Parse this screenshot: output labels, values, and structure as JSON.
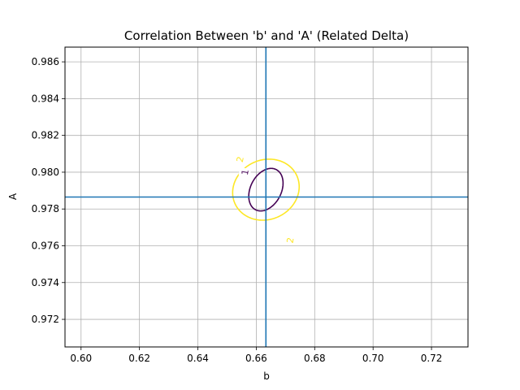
{
  "chart_data": {
    "type": "contour",
    "title": "Correlation Between 'b' and 'A' (Related Delta)",
    "xlabel": "b",
    "ylabel": "A",
    "xlim": [
      0.5945,
      0.7325
    ],
    "ylim": [
      0.9705,
      0.9868
    ],
    "xticks": [
      "0.60",
      "0.62",
      "0.64",
      "0.66",
      "0.68",
      "0.70",
      "0.72"
    ],
    "yticks": [
      "0.972",
      "0.974",
      "0.976",
      "0.978",
      "0.980",
      "0.982",
      "0.984",
      "0.986"
    ],
    "grid": true,
    "best_fit": {
      "b": 0.6633,
      "A": 0.97865,
      "color": "#1f77b4"
    },
    "contours": [
      {
        "level": 1,
        "label": "1",
        "color": "#440154",
        "center": [
          0.6633,
          0.97905
        ],
        "semi_axes": [
          0.01003,
          0.00546
        ],
        "angle_deg": 75.13,
        "clip_labels": []
      },
      {
        "level": 2,
        "label": "2",
        "color": "#fde725",
        "center": [
          0.6633,
          0.97905
        ],
        "semi_axes": [
          0.01417,
          0.01124
        ],
        "angle_deg": 77.56,
        "clip_labels": []
      }
    ],
    "contour_labels": [
      {
        "text": "1",
        "b": 0.6561,
        "A": 0.98,
        "color": "#440154",
        "rot": -80
      },
      {
        "text": "2",
        "b": 0.6544,
        "A": 0.9807,
        "color": "#fde725",
        "rot": -78
      },
      {
        "text": "2",
        "b": 0.6716,
        "A": 0.9763,
        "color": "#fde725",
        "rot": -80
      }
    ]
  }
}
